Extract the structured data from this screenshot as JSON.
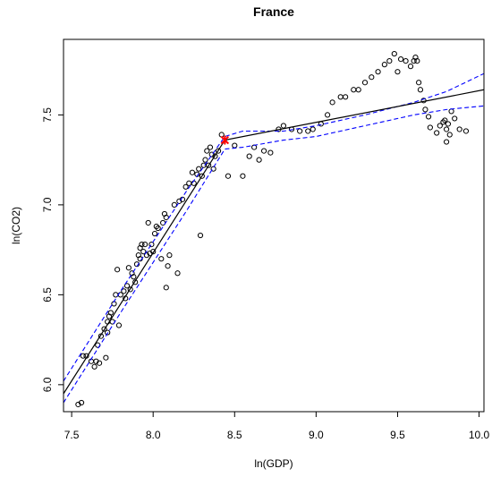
{
  "chart_data": {
    "type": "scatter",
    "title": "France",
    "xlabel": "ln(GDP)",
    "ylabel": "ln(CO2)",
    "xlim": [
      7.45,
      10.03
    ],
    "ylim": [
      5.85,
      7.92
    ],
    "xticks": [
      7.5,
      8.0,
      8.5,
      9.0,
      9.5,
      10.0
    ],
    "xtick_labels": [
      "7.5",
      "8.0",
      "8.5",
      "9.0",
      "9.5",
      "10.0"
    ],
    "yticks": [
      6.0,
      6.5,
      7.0,
      7.5
    ],
    "ytick_labels": [
      "6.0",
      "6.5",
      "7.0",
      "7.5"
    ],
    "grid": false,
    "colors": {
      "points": "#000000",
      "fit": "#000000",
      "ci": "#0000ff",
      "breakpoint": "#ff0000"
    },
    "breakpoint": {
      "x": 8.44,
      "y": 7.36
    },
    "fit": [
      {
        "name": "segment-1",
        "x": [
          7.45,
          8.44
        ],
        "y": [
          5.95,
          7.36
        ]
      },
      {
        "name": "segment-2",
        "x": [
          8.44,
          10.03
        ],
        "y": [
          7.36,
          7.64
        ]
      }
    ],
    "ci_upper": {
      "x": [
        7.45,
        7.8,
        8.2,
        8.44,
        8.55,
        8.8,
        9.0,
        9.3,
        9.6,
        9.8,
        10.03
      ],
      "y": [
        6.02,
        6.52,
        7.07,
        7.38,
        7.41,
        7.41,
        7.44,
        7.5,
        7.57,
        7.63,
        7.73
      ]
    },
    "ci_lower": {
      "x": [
        7.45,
        7.8,
        8.2,
        8.44,
        8.55,
        8.8,
        9.0,
        9.3,
        9.6,
        9.8,
        10.03
      ],
      "y": [
        5.9,
        6.4,
        6.96,
        7.31,
        7.32,
        7.36,
        7.38,
        7.44,
        7.5,
        7.53,
        7.55
      ]
    },
    "points": [
      [
        7.54,
        5.89
      ],
      [
        7.56,
        5.9
      ],
      [
        7.57,
        6.16
      ],
      [
        7.59,
        6.16
      ],
      [
        7.62,
        6.13
      ],
      [
        7.64,
        6.1
      ],
      [
        7.65,
        6.13
      ],
      [
        7.66,
        6.22
      ],
      [
        7.67,
        6.12
      ],
      [
        7.68,
        6.27
      ],
      [
        7.7,
        6.31
      ],
      [
        7.71,
        6.15
      ],
      [
        7.72,
        6.29
      ],
      [
        7.72,
        6.35
      ],
      [
        7.73,
        6.38
      ],
      [
        7.74,
        6.4
      ],
      [
        7.75,
        6.35
      ],
      [
        7.76,
        6.45
      ],
      [
        7.77,
        6.5
      ],
      [
        7.78,
        6.64
      ],
      [
        7.79,
        6.33
      ],
      [
        7.8,
        6.5
      ],
      [
        7.82,
        6.52
      ],
      [
        7.83,
        6.48
      ],
      [
        7.84,
        6.55
      ],
      [
        7.85,
        6.65
      ],
      [
        7.86,
        6.53
      ],
      [
        7.87,
        6.62
      ],
      [
        7.88,
        6.6
      ],
      [
        7.89,
        6.57
      ],
      [
        7.9,
        6.67
      ],
      [
        7.91,
        6.72
      ],
      [
        7.92,
        6.7
      ],
      [
        7.92,
        6.76
      ],
      [
        7.93,
        6.78
      ],
      [
        7.94,
        6.74
      ],
      [
        7.95,
        6.78
      ],
      [
        7.96,
        6.72
      ],
      [
        7.97,
        6.9
      ],
      [
        7.98,
        6.73
      ],
      [
        7.99,
        6.78
      ],
      [
        8.0,
        6.74
      ],
      [
        8.01,
        6.84
      ],
      [
        8.02,
        6.88
      ],
      [
        8.03,
        6.87
      ],
      [
        8.05,
        6.7
      ],
      [
        8.06,
        6.9
      ],
      [
        8.07,
        6.95
      ],
      [
        8.08,
        6.93
      ],
      [
        8.09,
        6.66
      ],
      [
        8.1,
        6.72
      ],
      [
        8.08,
        6.54
      ],
      [
        8.13,
        7.0
      ],
      [
        8.15,
        6.62
      ],
      [
        8.16,
        7.02
      ],
      [
        8.18,
        7.03
      ],
      [
        8.2,
        7.1
      ],
      [
        8.22,
        7.12
      ],
      [
        8.24,
        7.18
      ],
      [
        8.25,
        7.12
      ],
      [
        8.27,
        7.17
      ],
      [
        8.28,
        7.2
      ],
      [
        8.29,
        6.83
      ],
      [
        8.3,
        7.16
      ],
      [
        8.31,
        7.22
      ],
      [
        8.32,
        7.25
      ],
      [
        8.33,
        7.3
      ],
      [
        8.34,
        7.22
      ],
      [
        8.35,
        7.32
      ],
      [
        8.36,
        7.28
      ],
      [
        8.37,
        7.2
      ],
      [
        8.38,
        7.27
      ],
      [
        8.4,
        7.3
      ],
      [
        8.42,
        7.39
      ],
      [
        8.46,
        7.16
      ],
      [
        8.5,
        7.33
      ],
      [
        8.55,
        7.16
      ],
      [
        8.59,
        7.27
      ],
      [
        8.62,
        7.32
      ],
      [
        8.65,
        7.25
      ],
      [
        8.68,
        7.3
      ],
      [
        8.72,
        7.29
      ],
      [
        8.77,
        7.42
      ],
      [
        8.8,
        7.44
      ],
      [
        8.85,
        7.42
      ],
      [
        8.9,
        7.41
      ],
      [
        8.95,
        7.41
      ],
      [
        8.98,
        7.42
      ],
      [
        9.03,
        7.45
      ],
      [
        9.07,
        7.5
      ],
      [
        9.1,
        7.57
      ],
      [
        9.15,
        7.6
      ],
      [
        9.18,
        7.6
      ],
      [
        9.23,
        7.64
      ],
      [
        9.26,
        7.64
      ],
      [
        9.3,
        7.68
      ],
      [
        9.34,
        7.71
      ],
      [
        9.38,
        7.74
      ],
      [
        9.42,
        7.78
      ],
      [
        9.45,
        7.8
      ],
      [
        9.48,
        7.84
      ],
      [
        9.5,
        7.74
      ],
      [
        9.52,
        7.81
      ],
      [
        9.55,
        7.8
      ],
      [
        9.58,
        7.77
      ],
      [
        9.6,
        7.8
      ],
      [
        9.61,
        7.82
      ],
      [
        9.62,
        7.8
      ],
      [
        9.63,
        7.68
      ],
      [
        9.64,
        7.64
      ],
      [
        9.66,
        7.58
      ],
      [
        9.67,
        7.53
      ],
      [
        9.69,
        7.49
      ],
      [
        9.7,
        7.43
      ],
      [
        9.74,
        7.4
      ],
      [
        9.76,
        7.44
      ],
      [
        9.78,
        7.46
      ],
      [
        9.79,
        7.47
      ],
      [
        9.8,
        7.42
      ],
      [
        9.8,
        7.35
      ],
      [
        9.81,
        7.45
      ],
      [
        9.82,
        7.39
      ],
      [
        9.83,
        7.52
      ],
      [
        9.85,
        7.48
      ],
      [
        9.88,
        7.42
      ],
      [
        9.92,
        7.41
      ]
    ]
  }
}
